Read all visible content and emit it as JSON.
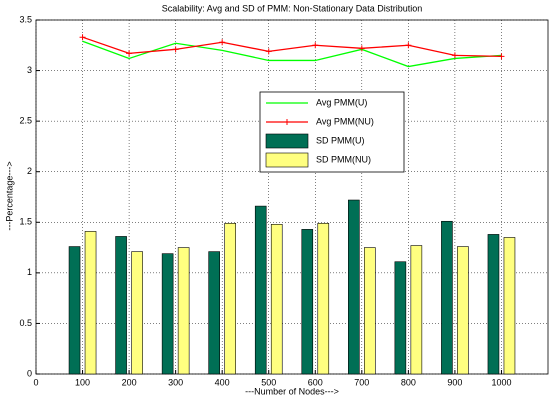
{
  "chart_data": {
    "type": "combo",
    "title": "Scalability: Avg and SD of PMM: Non-Stationary Data Distribution",
    "x_label": "---Number of Nodes--->",
    "y_label": "---Percentage--->",
    "x": [
      100,
      200,
      300,
      400,
      500,
      600,
      700,
      800,
      900,
      1000
    ],
    "series": [
      {
        "name": "Avg PMM(U)",
        "type": "line",
        "color": "#00ff00",
        "values": [
          3.29,
          3.12,
          3.27,
          3.2,
          3.1,
          3.1,
          3.21,
          3.04,
          3.12,
          3.15
        ]
      },
      {
        "name": "Avg PMM(NU)",
        "type": "line",
        "color": "#ff0000",
        "marker": "+",
        "values": [
          3.33,
          3.17,
          3.21,
          3.28,
          3.19,
          3.25,
          3.22,
          3.25,
          3.15,
          3.14
        ]
      },
      {
        "name": "SD PMM(U)",
        "type": "bar",
        "color": "#006f55",
        "values": [
          1.26,
          1.36,
          1.19,
          1.21,
          1.66,
          1.43,
          1.72,
          1.11,
          1.51,
          1.38
        ]
      },
      {
        "name": "SD PMM(NU)",
        "type": "bar",
        "color": "#ffff80",
        "values": [
          1.41,
          1.21,
          1.25,
          1.49,
          1.48,
          1.49,
          1.25,
          1.27,
          1.26,
          1.35
        ]
      }
    ],
    "xlim": [
      0,
      1100
    ],
    "xticks": [
      0,
      100,
      200,
      300,
      400,
      500,
      600,
      700,
      800,
      900,
      1000
    ],
    "ylim": [
      0,
      3.5
    ],
    "yticks": [
      0,
      0.5,
      1,
      1.5,
      2,
      2.5,
      3,
      3.5
    ],
    "grid": true,
    "legend_position": "center"
  }
}
